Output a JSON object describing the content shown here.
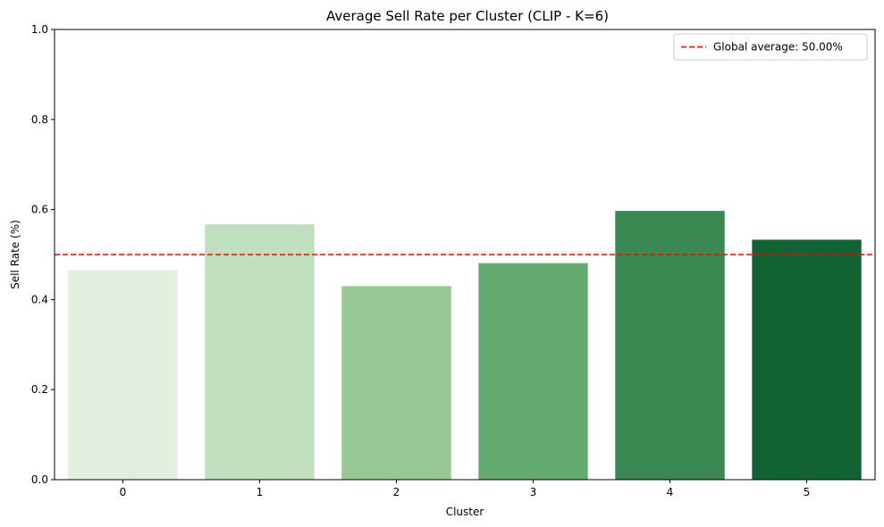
{
  "chart_data": {
    "type": "bar",
    "title": "Average Sell Rate per Cluster (CLIP - K=6)",
    "xlabel": "Cluster",
    "ylabel": "Sell Rate (%)",
    "categories": [
      "0",
      "1",
      "2",
      "3",
      "4",
      "5"
    ],
    "values": [
      0.465,
      0.567,
      0.43,
      0.481,
      0.597,
      0.533
    ],
    "colors": [
      "#e2efdf",
      "#c0dfbd",
      "#97c994",
      "#63ab6f",
      "#3a8852",
      "#116333"
    ],
    "ylim": [
      0,
      1
    ],
    "yticks": [
      0.0,
      0.2,
      0.4,
      0.6,
      0.8,
      1.0
    ],
    "ytick_labels": [
      "0.0",
      "0.2",
      "0.4",
      "0.6",
      "0.8",
      "1.0"
    ],
    "grid": false,
    "reference_line": {
      "value": 0.5,
      "label": "Global average: 50.00%",
      "color": "#ff0000",
      "style": "dashed"
    },
    "legend": {
      "position": "top-right"
    }
  }
}
